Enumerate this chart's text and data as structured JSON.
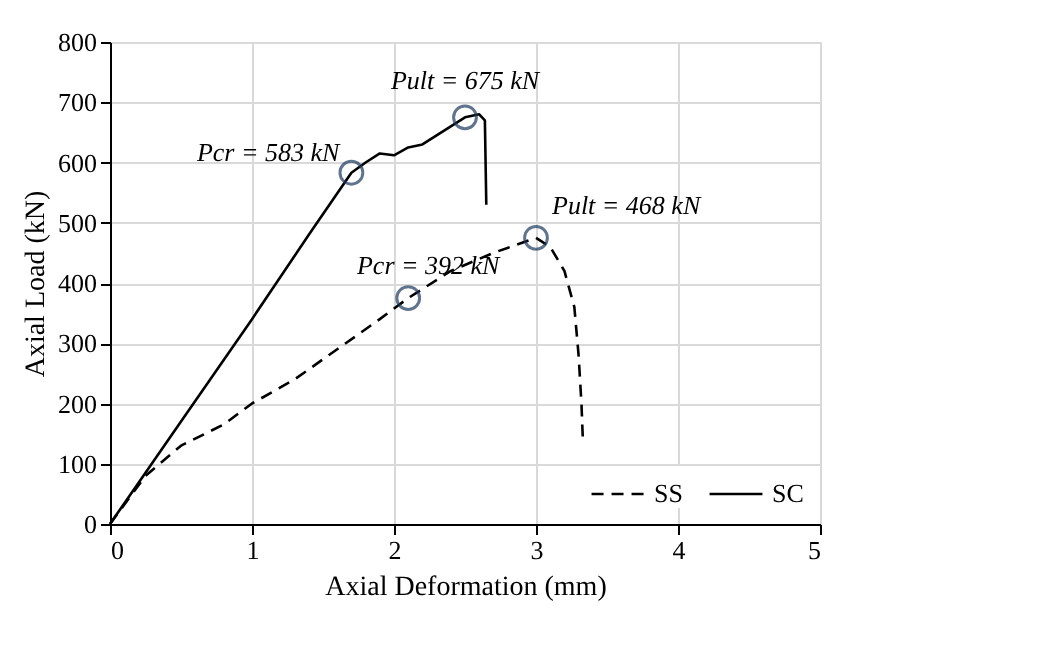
{
  "chart_data": {
    "type": "line",
    "xlabel": "Axial Deformation (mm)",
    "ylabel": "Axial Load (kN)",
    "xlim": [
      0,
      5
    ],
    "xticks": [
      0,
      1,
      2,
      3,
      4,
      5
    ],
    "ylim": [
      0,
      800
    ],
    "yticks": [
      0,
      100,
      200,
      300,
      400,
      500,
      600,
      700,
      800
    ],
    "grid": true,
    "legend": "bottom right",
    "marker": "none",
    "series": [
      {
        "name": "SS",
        "color": "#000000",
        "line_style": "dashed",
        "x": [
          0,
          0.25,
          0.5,
          0.8,
          1.0,
          1.3,
          1.6,
          1.9,
          2.1,
          2.4,
          2.7,
          3.0,
          3.1,
          3.2,
          3.27,
          3.3,
          3.32,
          3.33
        ],
        "values": [
          0,
          80,
          130,
          165,
          200,
          240,
          290,
          340,
          375,
          420,
          450,
          475,
          460,
          420,
          360,
          280,
          200,
          140
        ]
      },
      {
        "name": "SC",
        "color": "#000000",
        "line_style": "solid",
        "x": [
          0,
          0.5,
          1.0,
          1.4,
          1.7,
          1.8,
          1.9,
          2.0,
          2.1,
          2.2,
          2.3,
          2.4,
          2.5,
          2.6,
          2.64,
          2.65
        ],
        "values": [
          0,
          170,
          340,
          480,
          583,
          600,
          615,
          612,
          625,
          630,
          645,
          660,
          675,
          680,
          670,
          530
        ]
      }
    ],
    "annotations": [
      {
        "text": "Pcr = 583 kN",
        "x": 1.7,
        "y": 583
      },
      {
        "text": "Pult = 675 kN",
        "x": 2.5,
        "y": 675
      },
      {
        "text": "Pcr = 392 kN",
        "x": 2.1,
        "y": 375
      },
      {
        "text": "Pult = 468 kN",
        "x": 3.0,
        "y": 475
      }
    ]
  }
}
